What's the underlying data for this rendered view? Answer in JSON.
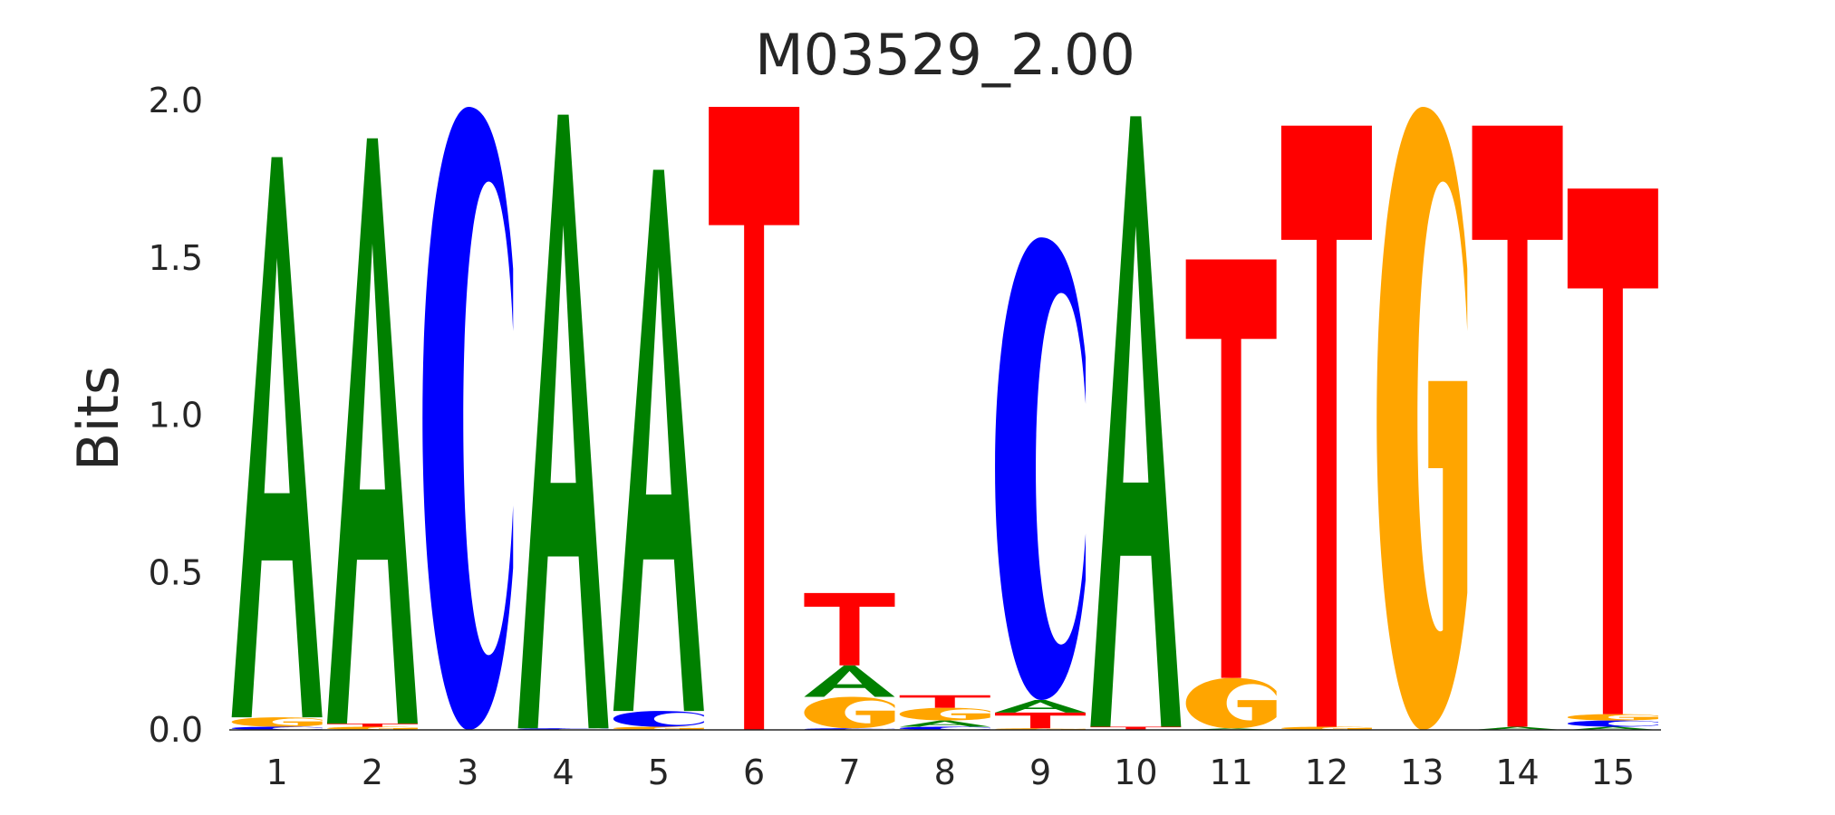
{
  "chart_data": {
    "type": "sequence_logo",
    "title": "M03529_2.00",
    "ylabel": "Bits",
    "xlabel": "",
    "ylim": [
      0,
      2.0
    ],
    "yticks": [
      "0.0",
      "0.5",
      "1.0",
      "1.5",
      "2.0"
    ],
    "ytick_values": [
      0,
      0.5,
      1.0,
      1.5,
      2.0
    ],
    "positions": [
      "1",
      "2",
      "3",
      "4",
      "5",
      "6",
      "7",
      "8",
      "9",
      "10",
      "11",
      "12",
      "13",
      "14",
      "15"
    ],
    "colors": {
      "A": "#008000",
      "C": "#0000ff",
      "G": "#ffa500",
      "T": "#ff0000"
    },
    "stacks": [
      [
        [
          "C",
          0.01
        ],
        [
          "G",
          0.03
        ],
        [
          "A",
          1.78
        ]
      ],
      [
        [
          "G",
          0.01
        ],
        [
          "T",
          0.01
        ],
        [
          "A",
          1.86
        ]
      ],
      [
        [
          "C",
          1.98
        ]
      ],
      [
        [
          "C",
          0.005
        ],
        [
          "A",
          1.95
        ]
      ],
      [
        [
          "G",
          0.01
        ],
        [
          "C",
          0.05
        ],
        [
          "A",
          1.72
        ]
      ],
      [
        [
          "T",
          1.98
        ]
      ],
      [
        [
          "C",
          0.005
        ],
        [
          "G",
          0.1
        ],
        [
          "A",
          0.1
        ],
        [
          "T",
          0.23
        ]
      ],
      [
        [
          "C",
          0.01
        ],
        [
          "A",
          0.02
        ],
        [
          "G",
          0.04
        ],
        [
          "T",
          0.04
        ]
      ],
      [
        [
          "G",
          0.005
        ],
        [
          "T",
          0.05
        ],
        [
          "A",
          0.04
        ],
        [
          "C",
          1.47
        ]
      ],
      [
        [
          "T",
          0.01
        ],
        [
          "A",
          1.94
        ]
      ],
      [
        [
          "A",
          0.005
        ],
        [
          "G",
          0.16
        ],
        [
          "T",
          1.33
        ]
      ],
      [
        [
          "G",
          0.01
        ],
        [
          "T",
          1.91
        ]
      ],
      [
        [
          "G",
          1.98
        ]
      ],
      [
        [
          "A",
          0.01
        ],
        [
          "T",
          1.91
        ]
      ],
      [
        [
          "A",
          0.01
        ],
        [
          "C",
          0.02
        ],
        [
          "G",
          0.02
        ],
        [
          "T",
          1.67
        ]
      ]
    ]
  }
}
